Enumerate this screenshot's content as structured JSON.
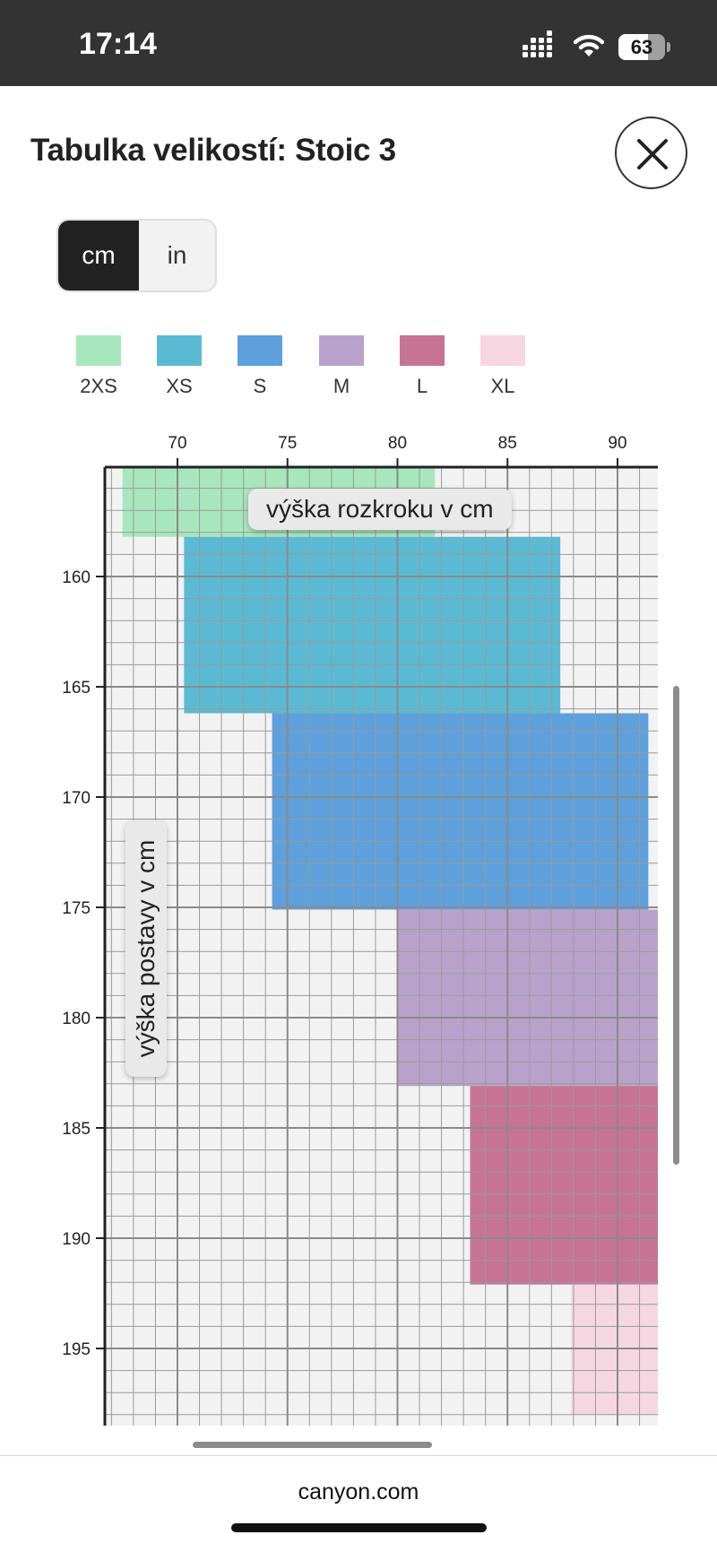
{
  "status_bar": {
    "time": "17:14",
    "battery": "63",
    "battery_level": 0.63
  },
  "sheet": {
    "title": "Tabulka velikostí: Stoic 3",
    "close_icon": "close-icon"
  },
  "unit_toggle": {
    "options": [
      "cm",
      "in"
    ],
    "selected": "cm"
  },
  "chart_data": {
    "type": "heatmap",
    "xlabel": "výška rozkroku v cm",
    "ylabel": "výška postavy v cm",
    "x_ticks": [
      "70",
      "75",
      "80",
      "85",
      "90"
    ],
    "y_ticks": [
      "160",
      "165",
      "170",
      "175",
      "180",
      "185",
      "190",
      "195"
    ],
    "xlim": [
      66.8,
      92
    ],
    "ylim": [
      155,
      198
    ],
    "grid": true,
    "legend_placement": "top",
    "sizes": [
      {
        "name": "2XS",
        "color": "#a8e6bd",
        "crotch": [
          67.5,
          81.7
        ],
        "height": [
          155,
          158.2
        ]
      },
      {
        "name": "XS",
        "color": "#5bbad3",
        "crotch": [
          70.3,
          87.4
        ],
        "height": [
          158.2,
          166.2
        ]
      },
      {
        "name": "S",
        "color": "#5da0db",
        "crotch": [
          74.3,
          91.4
        ],
        "height": [
          166.2,
          175.1
        ]
      },
      {
        "name": "M",
        "color": "#b8a2cb",
        "crotch": [
          80,
          92
        ],
        "height": [
          175.1,
          183.1
        ]
      },
      {
        "name": "L",
        "color": "#c67394",
        "crotch": [
          83.3,
          92
        ],
        "height": [
          183.1,
          192.1
        ]
      },
      {
        "name": "XL",
        "color": "#f6d7e1",
        "crotch": [
          87.9,
          92
        ],
        "height": [
          192.1,
          198
        ]
      }
    ]
  },
  "browser": {
    "url": "canyon.com"
  }
}
